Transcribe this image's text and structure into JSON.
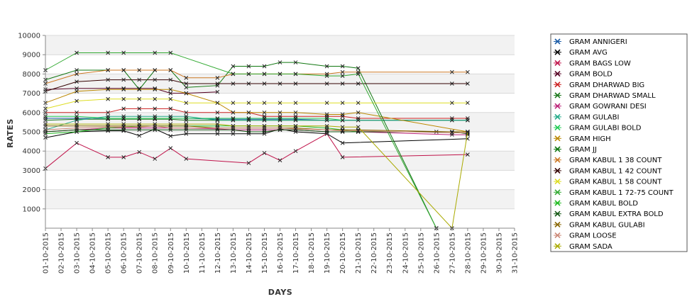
{
  "chart_data": {
    "type": "line",
    "xlabel": "DAYS",
    "ylabel": "RATES",
    "ylim": [
      0,
      10000
    ],
    "yticks": [
      1000,
      2000,
      3000,
      4000,
      5000,
      6000,
      7000,
      8000,
      9000,
      10000
    ],
    "grid": "alternating horizontal bands",
    "legend_position": "right",
    "categories": [
      "01-10-2015",
      "02-10-2015",
      "03-10-2015",
      "04-10-2015",
      "05-10-2015",
      "06-10-2015",
      "07-10-2015",
      "08-10-2015",
      "09-10-2015",
      "10-10-2015",
      "11-10-2015",
      "12-10-2015",
      "13-10-2015",
      "14-10-2015",
      "15-10-2015",
      "16-10-2015",
      "17-10-2015",
      "18-10-2015",
      "19-10-2015",
      "20-10-2015",
      "21-10-2015",
      "22-10-2015",
      "23-10-2015",
      "24-10-2015",
      "25-10-2015",
      "26-10-2015",
      "27-10-2015",
      "28-10-2015",
      "29-10-2015",
      "30-10-2015",
      "31-10-2015"
    ],
    "series": [
      {
        "name": "GRAM ANNIGERI",
        "color": "#1f5fa8",
        "values": [
          5700,
          null,
          5700,
          null,
          5700,
          5700,
          5700,
          5700,
          5700,
          5700,
          null,
          5650,
          5650,
          5650,
          5650,
          5650,
          5650,
          null,
          5600,
          5600,
          null,
          null,
          null,
          null,
          null,
          null,
          5600,
          5600,
          null,
          null,
          null
        ]
      },
      {
        "name": "GRAM AVG",
        "color": "#000000",
        "values": [
          4700,
          null,
          5000,
          null,
          5050,
          5050,
          4800,
          5150,
          4780,
          4900,
          null,
          4900,
          4900,
          4900,
          4900,
          5150,
          5000,
          null,
          4900,
          4420,
          null,
          null,
          null,
          null,
          null,
          null,
          null,
          4640,
          null,
          null,
          null
        ]
      },
      {
        "name": "GRAM BAGS LOW",
        "color": "#c0144b",
        "values": [
          3100,
          null,
          4420,
          null,
          3680,
          3680,
          3950,
          3600,
          4150,
          3600,
          null,
          null,
          null,
          3380,
          3900,
          3520,
          4000,
          null,
          4900,
          3680,
          null,
          null,
          null,
          null,
          null,
          null,
          null,
          3820,
          null,
          null,
          null
        ]
      },
      {
        "name": "GRAM BOLD",
        "color": "#550022",
        "values": [
          7200,
          null,
          7250,
          null,
          7250,
          7250,
          7250,
          7250,
          7000,
          7000,
          null,
          7070,
          null,
          null,
          null,
          null,
          null,
          null,
          null,
          null,
          null,
          null,
          null,
          null,
          null,
          null,
          null,
          null,
          null,
          null,
          null
        ]
      },
      {
        "name": "GRAM DHARWAD BIG",
        "color": "#cc2222",
        "values": [
          6000,
          null,
          6000,
          null,
          6000,
          6200,
          6200,
          6200,
          6200,
          6000,
          null,
          6000,
          6000,
          6000,
          5800,
          5800,
          5800,
          null,
          5800,
          5800,
          5700,
          null,
          null,
          null,
          null,
          null,
          5700,
          5700,
          null,
          null,
          null
        ]
      },
      {
        "name": "GRAM DHARWAD SMALL",
        "color": "#1f7a1f",
        "values": [
          5600,
          null,
          5650,
          null,
          5650,
          5650,
          5650,
          5650,
          5650,
          5600,
          null,
          5600,
          5600,
          5600,
          5600,
          5600,
          5600,
          null,
          5600,
          5600,
          5600,
          null,
          null,
          null,
          null,
          null,
          null,
          5600,
          null,
          null,
          null
        ]
      },
      {
        "name": "GRAM GOWRANI DESI",
        "color": "#bb2277",
        "values": [
          5000,
          null,
          5100,
          null,
          5200,
          5200,
          5200,
          5200,
          5200,
          5200,
          null,
          5150,
          5100,
          5100,
          5100,
          5100,
          5100,
          null,
          5000,
          5000,
          5000,
          null,
          null,
          null,
          null,
          null,
          4850,
          4850,
          null,
          null,
          null
        ]
      },
      {
        "name": "GRAM GULABI",
        "color": "#22aa88",
        "values": [
          5100,
          null,
          5600,
          null,
          5800,
          5800,
          5800,
          5800,
          5800,
          5800,
          null,
          5600,
          5600,
          5600,
          5600,
          5600,
          5600,
          null,
          5600,
          5600,
          5600,
          null,
          null,
          null,
          null,
          null,
          5600,
          5600,
          null,
          null,
          null
        ]
      },
      {
        "name": "GRAM GULABI BOLD",
        "color": "#22cc55",
        "values": [
          5800,
          null,
          5800,
          null,
          5700,
          5700,
          5700,
          5700,
          5700,
          5700,
          null,
          5700,
          5700,
          5700,
          5700,
          5700,
          5700,
          null,
          5700,
          5600,
          null,
          null,
          null,
          null,
          null,
          null,
          null,
          null,
          null,
          null,
          null
        ]
      },
      {
        "name": "GRAM HIGH",
        "color": "#bb8800",
        "values": [
          6500,
          null,
          7100,
          null,
          7200,
          7200,
          7200,
          7200,
          7200,
          7000,
          null,
          6500,
          6000,
          6000,
          6000,
          6000,
          6000,
          null,
          5900,
          5900,
          6000,
          null,
          null,
          null,
          null,
          null,
          null,
          5000,
          null,
          null,
          null
        ]
      },
      {
        "name": "GRAM JJ",
        "color": "#117711",
        "values": [
          7700,
          null,
          8200,
          null,
          8200,
          8200,
          7200,
          8200,
          8200,
          7300,
          null,
          7400,
          8400,
          8400,
          8400,
          8600,
          8600,
          null,
          8400,
          8400,
          8300,
          null,
          null,
          null,
          null,
          0,
          null,
          null,
          null,
          null,
          null
        ]
      },
      {
        "name": "GRAM KABUL 1 38 COUNT",
        "color": "#cc7722",
        "values": [
          7500,
          null,
          8000,
          null,
          8200,
          8200,
          8200,
          8200,
          8200,
          7800,
          null,
          7800,
          8000,
          8000,
          8000,
          8000,
          8000,
          null,
          8000,
          8100,
          8100,
          null,
          null,
          null,
          null,
          null,
          8100,
          8100,
          null,
          null,
          null
        ]
      },
      {
        "name": "GRAM KABUL 1 42 COUNT",
        "color": "#330000",
        "values": [
          7100,
          null,
          7600,
          null,
          7700,
          7700,
          7700,
          7700,
          7700,
          7500,
          null,
          7500,
          7500,
          7500,
          7500,
          7500,
          7500,
          null,
          7500,
          7500,
          7500,
          null,
          null,
          null,
          null,
          null,
          7500,
          7500,
          null,
          null,
          null
        ]
      },
      {
        "name": "GRAM KABUL 1 58 COUNT",
        "color": "#dddd22",
        "values": [
          6200,
          null,
          6600,
          null,
          6700,
          6700,
          6700,
          6700,
          6700,
          6500,
          null,
          6500,
          6500,
          6500,
          6500,
          6500,
          6500,
          null,
          6500,
          6500,
          6500,
          null,
          null,
          null,
          null,
          null,
          6500,
          6500,
          null,
          null,
          null
        ]
      },
      {
        "name": "GRAM KABUL 1 72-75 COUNT",
        "color": "#33aa33",
        "values": [
          8200,
          null,
          9100,
          null,
          9100,
          9100,
          null,
          9100,
          9100,
          null,
          null,
          null,
          8000,
          8000,
          8000,
          8000,
          8000,
          null,
          7900,
          7900,
          8000,
          null,
          null,
          null,
          null,
          0,
          null,
          null,
          null,
          null,
          null
        ]
      },
      {
        "name": "GRAM KABUL BOLD",
        "color": "#22bb22",
        "values": [
          4900,
          null,
          5000,
          null,
          5200,
          5250,
          5300,
          5300,
          5300,
          5300,
          null,
          5300,
          5300,
          5300,
          5300,
          5300,
          5300,
          null,
          5200,
          5100,
          5000,
          null,
          null,
          null,
          null,
          null,
          5000,
          5000,
          null,
          null,
          null
        ]
      },
      {
        "name": "GRAM KABUL EXTRA BOLD",
        "color": "#115511",
        "values": [
          5000,
          null,
          5100,
          null,
          5100,
          5100,
          5100,
          5100,
          5100,
          5100,
          null,
          5100,
          5100,
          5000,
          5000,
          5100,
          5100,
          null,
          5000,
          5000,
          5000,
          null,
          null,
          null,
          null,
          5000,
          5000,
          4900,
          null,
          null,
          null
        ]
      },
      {
        "name": "GRAM KABUL GULABI",
        "color": "#886600",
        "values": [
          5300,
          null,
          5300,
          null,
          5300,
          5300,
          5300,
          5300,
          5300,
          5300,
          null,
          5200,
          5200,
          5200,
          5200,
          5200,
          5200,
          null,
          5100,
          5100,
          5100,
          null,
          null,
          null,
          null,
          null,
          5000,
          5000,
          null,
          null,
          null
        ]
      },
      {
        "name": "GRAM LOOSE",
        "color": "#cc8877",
        "values": [
          5100,
          null,
          5200,
          null,
          5250,
          5250,
          5250,
          5300,
          5200,
          5200,
          null,
          5200,
          5200,
          5200,
          5200,
          5200,
          5150,
          null,
          5100,
          5050,
          5050,
          null,
          null,
          null,
          null,
          null,
          4950,
          4950,
          null,
          null,
          null
        ]
      },
      {
        "name": "GRAM SADA",
        "color": "#aaaa00",
        "values": [
          5400,
          null,
          5400,
          null,
          5400,
          5400,
          5400,
          5400,
          5400,
          5400,
          null,
          5400,
          5300,
          5300,
          5300,
          5300,
          5300,
          null,
          5300,
          5250,
          5250,
          null,
          null,
          null,
          null,
          null,
          0,
          5000,
          null,
          null,
          null
        ]
      }
    ]
  }
}
